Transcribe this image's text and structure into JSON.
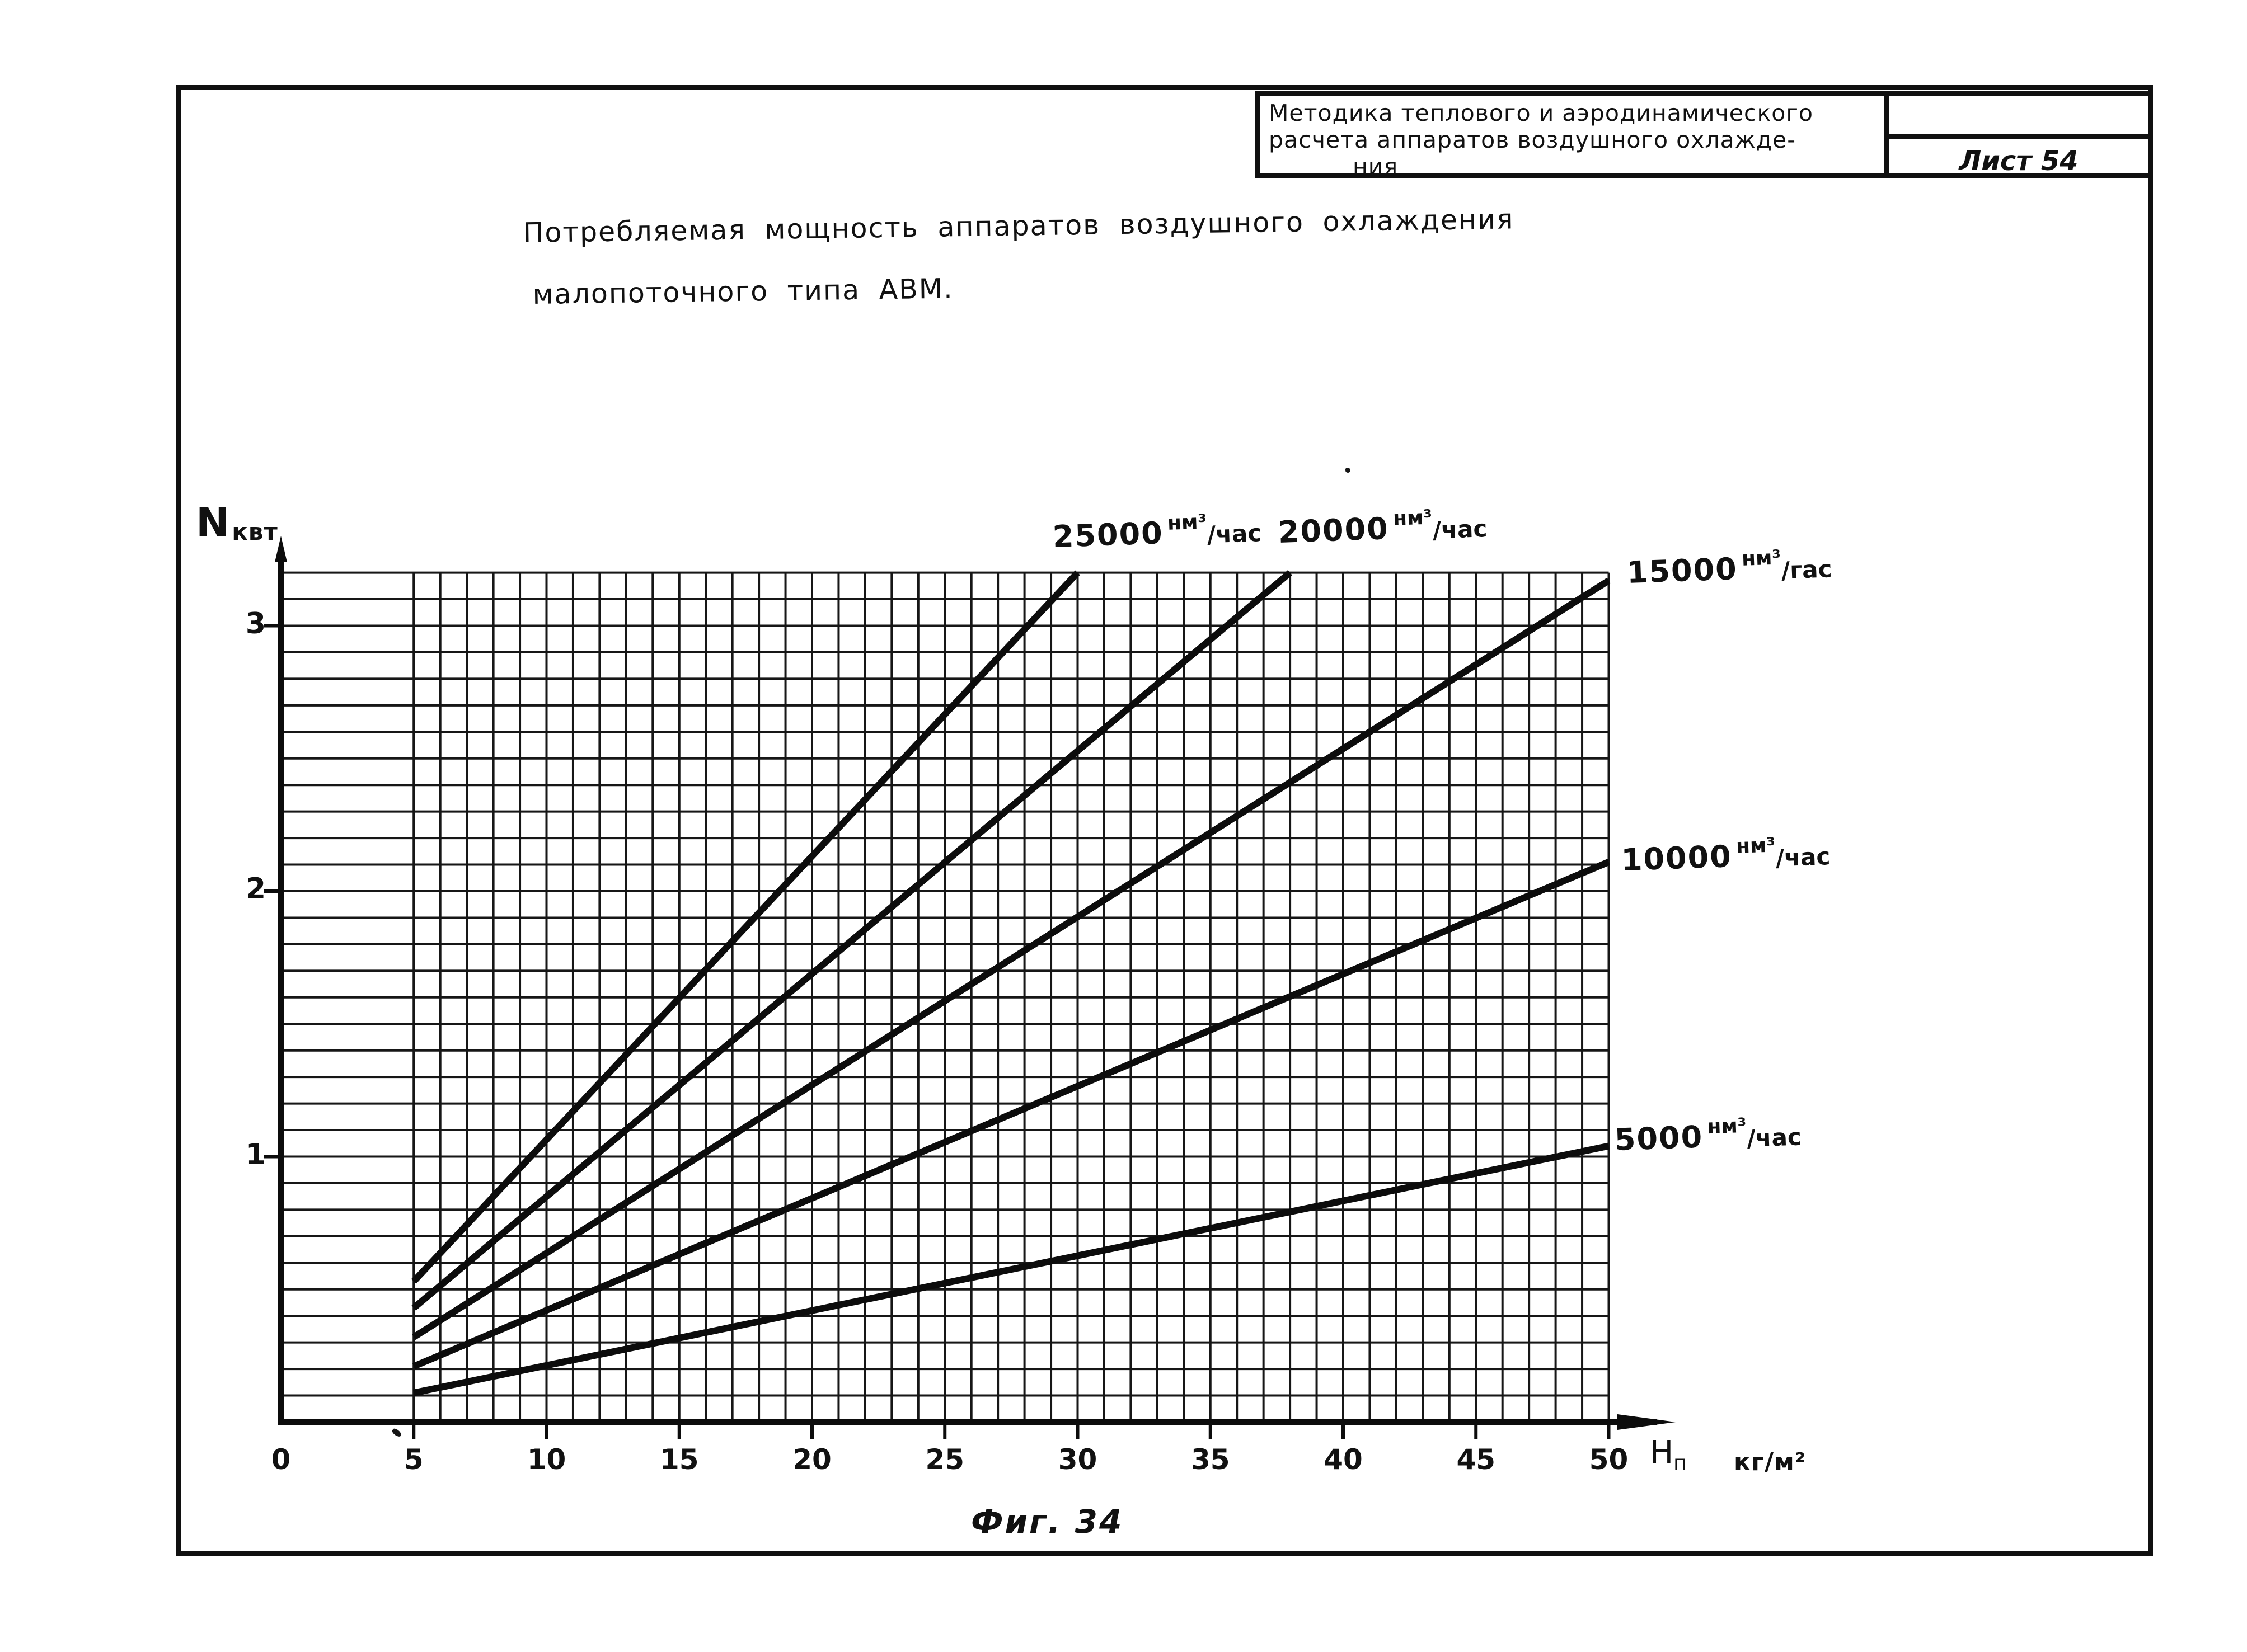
{
  "page": {
    "background": "#ffffff",
    "ink": "#101010"
  },
  "header": {
    "method_lines": [
      "Методика теплового и аэродинамического",
      "расчета аппаратов воздушного охлажде-",
      "ния"
    ],
    "sheet": "Лист 54"
  },
  "title": {
    "line1": "Потребляемая мощность аппаратов воздушного охлаждения",
    "line2": "малопоточного типа АВМ."
  },
  "caption": "Фиг. 34",
  "axis_labels": {
    "y_main": "N",
    "y_unit": "квт",
    "x_main": "H",
    "x_sub": "п",
    "x_unit": "кг/м²"
  },
  "chart_data": {
    "type": "line",
    "title": "Потребляемая мощность аппаратов воздушного охлаждения малопоточного типа АВМ",
    "xlabel": "Hп, кг/м²",
    "ylabel": "N, квт",
    "xlim": [
      0,
      50
    ],
    "ylim": [
      0,
      3.2
    ],
    "x_ticks": [
      0,
      5,
      10,
      15,
      20,
      25,
      30,
      35,
      40,
      45,
      50
    ],
    "y_ticks": [
      1,
      2,
      3
    ],
    "grid": {
      "on": true,
      "x_minor_step": 1,
      "x_minor_from": 5,
      "y_minor_step": 0.1
    },
    "legend_position": "inline-labels",
    "series": [
      {
        "name": "25000 нм³/час",
        "flow_value": "25000",
        "unit_sup": "нм³",
        "unit_den": "/час",
        "points": [
          [
            5,
            0.53
          ],
          [
            30,
            3.2
          ]
        ]
      },
      {
        "name": "20000 нм³/час",
        "flow_value": "20000",
        "unit_sup": "нм³",
        "unit_den": "/час",
        "points": [
          [
            5,
            0.43
          ],
          [
            38,
            3.2
          ]
        ]
      },
      {
        "name": "15000 нм³/гас",
        "flow_value": "15000",
        "unit_sup": "нм³",
        "unit_den": "/гас",
        "points": [
          [
            5,
            0.32
          ],
          [
            50,
            3.17
          ]
        ]
      },
      {
        "name": "10000 нм³/час",
        "flow_value": "10000",
        "unit_sup": "нм³",
        "unit_den": "/час",
        "points": [
          [
            5,
            0.21
          ],
          [
            50,
            2.11
          ]
        ]
      },
      {
        "name": "5000 нм³/час",
        "flow_value": "5000",
        "unit_sup": "нм³",
        "unit_den": "/час",
        "points": [
          [
            5,
            0.11
          ],
          [
            50,
            1.04
          ]
        ]
      }
    ]
  }
}
